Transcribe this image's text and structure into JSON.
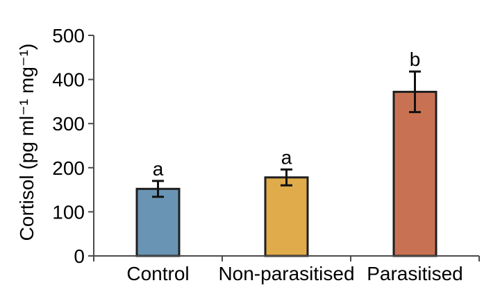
{
  "figure": {
    "background": "#ffffff",
    "title": ""
  },
  "chart_data": {
    "type": "bar",
    "title": "",
    "xlabel": "",
    "ylabel": "Cortisol (pg ml⁻¹ mg⁻¹)",
    "ylim": [
      0,
      500
    ],
    "yticks": [
      0,
      100,
      200,
      300,
      400,
      500
    ],
    "grid": false,
    "legend_position": "none",
    "categories": [
      "Control",
      "Non-parasitised",
      "Parasitised"
    ],
    "values": [
      152,
      178,
      372
    ],
    "errors": [
      18,
      18,
      46
    ],
    "significance_letters": [
      "a",
      "a",
      "b"
    ],
    "bar_colors": [
      "#6994b4",
      "#dfab4b",
      "#c97253"
    ],
    "style": {
      "bar_border_color": "#1f1f1f",
      "error_bar_color": "#111111",
      "axis_color": "#4a4a4a",
      "text_color": "#000000",
      "background": "#ffffff"
    }
  }
}
